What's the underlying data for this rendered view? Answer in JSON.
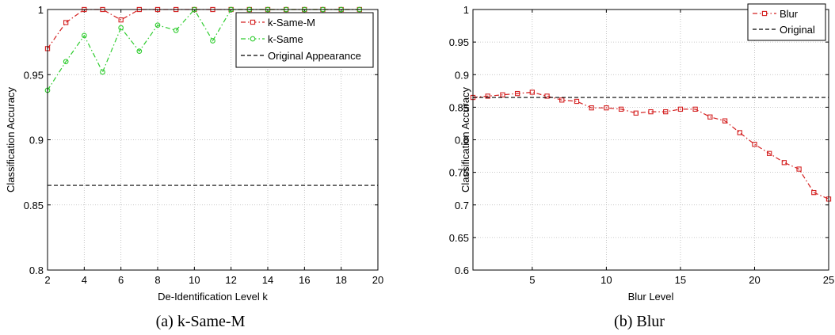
{
  "chart_data": [
    {
      "type": "line",
      "caption": "(a) k-Same-M",
      "xlabel": "De-Identification Level k",
      "ylabel": "Classification Accuracy",
      "xlim": [
        2,
        20
      ],
      "ylim": [
        0.8,
        1.0
      ],
      "xticks": [
        "2",
        "4",
        "6",
        "8",
        "10",
        "12",
        "14",
        "16",
        "18",
        "20"
      ],
      "yticks": [
        "0.8",
        "0.85",
        "0.9",
        "0.95",
        "1"
      ],
      "grid": true,
      "legend_position": "top-right",
      "series": [
        {
          "name": "k-Same-M",
          "color": "#d42020",
          "marker": "square",
          "style": "dash-dot",
          "x": [
            2,
            3,
            4,
            5,
            6,
            7,
            8,
            9,
            10,
            11,
            12,
            13,
            14,
            15,
            16,
            17,
            18,
            19
          ],
          "y": [
            0.97,
            0.99,
            1.0,
            1.0,
            0.992,
            1.0,
            1.0,
            1.0,
            1.0,
            1.0,
            1.0,
            1.0,
            1.0,
            1.0,
            1.0,
            1.0,
            1.0,
            1.0
          ]
        },
        {
          "name": "k-Same",
          "color": "#2ecc2e",
          "marker": "circle",
          "style": "dash-dot",
          "x": [
            2,
            3,
            4,
            5,
            6,
            7,
            8,
            9,
            10,
            11,
            12,
            13,
            14,
            15,
            16,
            17,
            18,
            19
          ],
          "y": [
            0.938,
            0.96,
            0.98,
            0.952,
            0.986,
            0.968,
            0.988,
            0.984,
            1.0,
            0.976,
            1.0,
            1.0,
            1.0,
            1.0,
            1.0,
            1.0,
            1.0,
            1.0
          ]
        },
        {
          "name": "Original Appearance",
          "color": "#000000",
          "marker": "none",
          "style": "dashed",
          "x": [
            2,
            20
          ],
          "y": [
            0.865,
            0.865
          ]
        }
      ]
    },
    {
      "type": "line",
      "caption": "(b) Blur",
      "xlabel": "Blur Level",
      "ylabel": "Classification Accuracy",
      "xlim": [
        1,
        25
      ],
      "ylim": [
        0.6,
        1.0
      ],
      "xticks": [
        "5",
        "10",
        "15",
        "20",
        "25"
      ],
      "yticks": [
        "0.6",
        "0.65",
        "0.7",
        "0.75",
        "0.8",
        "0.85",
        "0.9",
        "0.95",
        "1"
      ],
      "grid": true,
      "legend_position": "top-right",
      "series": [
        {
          "name": "Blur",
          "color": "#d42020",
          "marker": "square",
          "style": "dash-dot",
          "x": [
            1,
            2,
            3,
            4,
            5,
            6,
            7,
            8,
            9,
            10,
            11,
            12,
            13,
            14,
            15,
            16,
            17,
            18,
            19,
            20,
            21,
            22,
            23,
            24,
            25
          ],
          "y": [
            0.865,
            0.867,
            0.869,
            0.871,
            0.873,
            0.867,
            0.861,
            0.859,
            0.849,
            0.849,
            0.847,
            0.841,
            0.843,
            0.843,
            0.847,
            0.847,
            0.835,
            0.829,
            0.811,
            0.793,
            0.779,
            0.765,
            0.755,
            0.719,
            0.709
          ]
        },
        {
          "name": "Original",
          "color": "#000000",
          "marker": "none",
          "style": "dashed",
          "x": [
            1,
            25
          ],
          "y": [
            0.865,
            0.865
          ]
        }
      ]
    }
  ]
}
